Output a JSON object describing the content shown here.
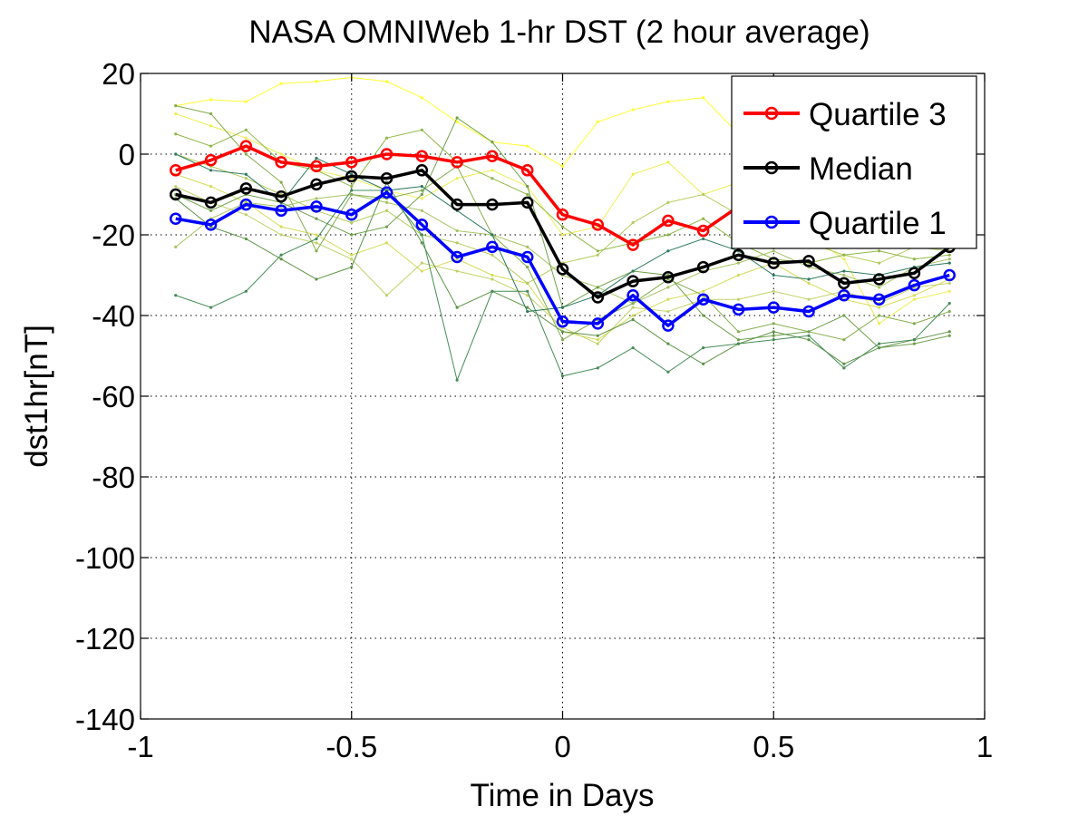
{
  "chart_data": {
    "type": "line",
    "title": "NASA OMNIWeb 1-hr DST (2 hour average)",
    "xlabel": "Time in Days",
    "ylabel": "dst1hr[nT]",
    "xlim": [
      -1,
      1
    ],
    "ylim": [
      -140,
      20
    ],
    "xticks": [
      -1,
      -0.5,
      0,
      0.5,
      1
    ],
    "yticks": [
      -140,
      -120,
      -100,
      -80,
      -60,
      -40,
      -20,
      0,
      20
    ],
    "xtick_labels": [
      "-1",
      "-0.5",
      "0",
      "0.5",
      "1"
    ],
    "ytick_labels": [
      "-140",
      "-120",
      "-100",
      "-80",
      "-60",
      "-40",
      "-20",
      "0",
      "20"
    ],
    "grid": true,
    "legend": {
      "position": "top-right",
      "entries": [
        "Quartile 3",
        "Median",
        "Quartile 1"
      ]
    },
    "x": [
      -0.9167,
      -0.8333,
      -0.75,
      -0.6667,
      -0.5833,
      -0.5,
      -0.4167,
      -0.3333,
      -0.25,
      -0.1667,
      -0.0833,
      0.0,
      0.0833,
      0.1667,
      0.25,
      0.3333,
      0.4167,
      0.5,
      0.5833,
      0.6667,
      0.75,
      0.8333,
      0.9167
    ],
    "series": [
      {
        "name": "Quartile 3",
        "color": "#ff0000",
        "values": [
          -4,
          -1.5,
          2,
          -2,
          -3,
          -2,
          0,
          -0.5,
          -2,
          -0.5,
          -4,
          -15,
          -17.5,
          -22.5,
          -16.5,
          -19,
          -13,
          -13,
          -14,
          -20,
          -22,
          -21,
          -20
        ]
      },
      {
        "name": "Median",
        "color": "#000000",
        "values": [
          -10,
          -12,
          -8.5,
          -10.5,
          -7.5,
          -5.5,
          -6,
          -4,
          -12.5,
          -12.5,
          -12,
          -28.5,
          -35.5,
          -31.5,
          -30.5,
          -28,
          -25,
          -27,
          -26.5,
          -32,
          -31,
          -29.5,
          -23
        ]
      },
      {
        "name": "Quartile 1",
        "color": "#0000ff",
        "values": [
          -16,
          -17.5,
          -12.5,
          -14,
          -13,
          -15,
          -9.5,
          -17.5,
          -25.5,
          -23,
          -25.5,
          -41.5,
          -42,
          -35,
          -42.5,
          -36,
          -38.5,
          -38,
          -39,
          -35,
          -36,
          -32.5,
          -30
        ]
      }
    ],
    "background_series": [
      {
        "color": "#ffff33",
        "values": [
          12,
          13.5,
          13,
          17.5,
          18,
          19,
          18,
          14,
          8,
          3,
          2,
          -3,
          8,
          11,
          13,
          14,
          5,
          3,
          -1,
          -8,
          -12,
          -14,
          -16
        ]
      },
      {
        "color": "#eeee55",
        "values": [
          10,
          7,
          4,
          0,
          -4,
          -6,
          -9,
          -11,
          -6,
          -4,
          -8,
          -20,
          -18,
          -5,
          -2,
          -10,
          -7,
          -12,
          -20,
          -26,
          -42,
          -36,
          -34
        ]
      },
      {
        "color": "#d4dc58",
        "values": [
          -5,
          -8,
          -12,
          -18,
          -20,
          -25,
          -22,
          -29,
          -26,
          -30,
          -32,
          -44,
          -46,
          -40,
          -36,
          -34,
          -30,
          -27,
          -32,
          -36,
          -38,
          -35,
          -31
        ]
      },
      {
        "color": "#c2d26a",
        "values": [
          -8,
          -12,
          -15,
          -20,
          -22,
          -26,
          -35,
          -27,
          -29,
          -31,
          -35,
          -43,
          -47,
          -38,
          -39,
          -36,
          -36,
          -34,
          -36,
          -34,
          -37,
          -33,
          -32
        ]
      },
      {
        "color": "#b5cc5e",
        "values": [
          0,
          -3,
          -6,
          -10,
          -14,
          -17,
          -14,
          -20,
          -22,
          -25,
          -32,
          -27,
          -25,
          -17,
          -12,
          -10,
          -15,
          -19,
          -22,
          -25,
          -27,
          -23,
          -24
        ]
      },
      {
        "color": "#a7c463",
        "values": [
          -23,
          -16,
          -12,
          -13,
          -11,
          -10,
          -12,
          -14,
          -19,
          -20,
          -23,
          -30,
          -33,
          -37,
          -33,
          -29,
          -27,
          -24,
          -28,
          -30,
          -33,
          -28,
          -26
        ]
      },
      {
        "color": "#8fb848",
        "values": [
          5,
          2,
          6,
          -2,
          -4,
          -8,
          4,
          6,
          -2,
          -6,
          -10,
          -18,
          -24,
          -22,
          -20,
          -16,
          -22,
          -26,
          -27,
          -25,
          -24,
          -26,
          -25
        ]
      },
      {
        "color": "#84ad4e",
        "values": [
          12,
          10,
          0,
          -7,
          -24,
          -10,
          -11,
          -9,
          -3,
          -20,
          -28,
          -46,
          -41,
          -37,
          -31,
          -35,
          -44,
          -42,
          -44,
          -46,
          -40,
          -42,
          -39
        ]
      },
      {
        "color": "#6fa14d",
        "values": [
          -10,
          -14,
          -10,
          -12,
          -16,
          -20,
          -18,
          -10,
          9,
          3,
          -8,
          -38,
          -33,
          -29,
          -30,
          -40,
          -46,
          -45,
          -44,
          -40,
          -48,
          -47,
          -45
        ]
      },
      {
        "color": "#5e9448",
        "values": [
          -11,
          -18,
          -21,
          -26,
          -31,
          -28,
          -7,
          -22,
          -38,
          -34,
          -38,
          -44,
          -45,
          -41,
          -47,
          -52,
          -47,
          -44,
          -46,
          -52,
          -48,
          -46,
          -44
        ]
      },
      {
        "color": "#468c57",
        "values": [
          -35,
          -38,
          -34,
          -25,
          -21,
          -9,
          -9,
          -20,
          -56,
          -34,
          -34,
          -55,
          -53,
          -48,
          -54,
          -48,
          -47,
          -46,
          -45,
          -53,
          -47,
          -46,
          -37
        ]
      },
      {
        "color": "#2f7a5e",
        "values": [
          0,
          -4,
          -5,
          -12,
          -1,
          -5,
          -9,
          -8,
          -14,
          -20,
          -39,
          -38,
          -35,
          -29,
          -24,
          -21,
          -24,
          -30,
          -31,
          -29,
          -30,
          -28,
          -27
        ]
      }
    ]
  }
}
